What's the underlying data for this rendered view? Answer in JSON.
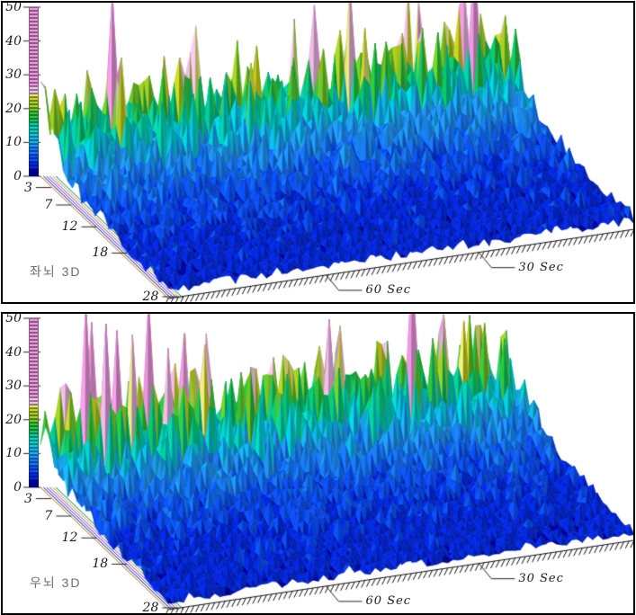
{
  "chart_data": [
    {
      "panel": "left-brain",
      "type": "surface",
      "title": "좌뇌 3D",
      "value_axis": {
        "range": [
          0,
          50
        ],
        "tick_labels": [
          "0",
          "10",
          "20",
          "30",
          "40",
          "50"
        ],
        "tick_values": [
          0,
          10,
          20,
          30,
          40,
          50
        ]
      },
      "depth_axis": {
        "range": [
          0,
          28
        ],
        "tick_labels": [
          "3",
          "7",
          "12",
          "18",
          "28"
        ],
        "tick_values": [
          3,
          7,
          12,
          18,
          28
        ]
      },
      "time_axis": {
        "cols": 90,
        "labels": [
          {
            "text": "60 Sec",
            "t": 30.5
          },
          {
            "text": "30 Sec",
            "t": 60
          }
        ]
      },
      "surface": {
        "seed": 20240,
        "rows": 28,
        "amp_floor": 3.2,
        "amp_back": 21,
        "amp_decay": 6.8,
        "peaks": [
          [
            1,
            2,
            28
          ],
          [
            13,
            1,
            52
          ],
          [
            13,
            3,
            36
          ],
          [
            22,
            2,
            30
          ],
          [
            30,
            1,
            24
          ],
          [
            40,
            2,
            32
          ],
          [
            46,
            3,
            26
          ],
          [
            52,
            1,
            40
          ],
          [
            58,
            2,
            46
          ],
          [
            60,
            3,
            34
          ],
          [
            67,
            1,
            24
          ],
          [
            72,
            2,
            30
          ],
          [
            81,
            1,
            38
          ],
          [
            82,
            2,
            50
          ],
          [
            88,
            2,
            30
          ],
          [
            89,
            1,
            26
          ]
        ]
      }
    },
    {
      "panel": "right-brain",
      "type": "surface",
      "title": "우뇌 3D",
      "value_axis": {
        "range": [
          0,
          50
        ],
        "tick_labels": [
          "0",
          "10",
          "20",
          "30",
          "40",
          "50"
        ],
        "tick_values": [
          0,
          10,
          20,
          30,
          40,
          50
        ]
      },
      "depth_axis": {
        "range": [
          0,
          28
        ],
        "tick_labels": [
          "3",
          "7",
          "12",
          "18",
          "28"
        ],
        "tick_values": [
          3,
          7,
          12,
          18,
          28
        ]
      },
      "time_axis": {
        "cols": 90,
        "labels": [
          {
            "text": "60 Sec",
            "t": 30.5
          },
          {
            "text": "30 Sec",
            "t": 60
          }
        ]
      },
      "surface": {
        "seed": 77613,
        "rows": 28,
        "amp_floor": 3.2,
        "amp_back": 21,
        "amp_decay": 6.8,
        "peaks": [
          [
            3,
            1,
            30
          ],
          [
            7,
            2,
            55
          ],
          [
            9,
            1,
            48
          ],
          [
            10,
            3,
            50
          ],
          [
            13,
            2,
            46
          ],
          [
            16,
            2,
            44
          ],
          [
            20,
            1,
            52
          ],
          [
            22,
            3,
            40
          ],
          [
            26,
            2,
            42
          ],
          [
            30,
            2,
            38
          ],
          [
            39,
            3,
            30
          ],
          [
            47,
            1,
            28
          ],
          [
            54,
            2,
            40
          ],
          [
            57,
            1,
            36
          ],
          [
            70,
            2,
            52
          ],
          [
            77,
            1,
            35
          ],
          [
            84,
            2,
            32
          ],
          [
            87,
            3,
            28
          ]
        ]
      }
    }
  ],
  "style": {
    "colormap": [
      [
        0,
        "#0000a8"
      ],
      [
        2,
        "#0028e6"
      ],
      [
        4,
        "#0a50ff"
      ],
      [
        6,
        "#1478ff"
      ],
      [
        8,
        "#1e96f5"
      ],
      [
        10,
        "#10b4f0"
      ],
      [
        11.5,
        "#00ccdc"
      ],
      [
        13,
        "#00d2be"
      ],
      [
        14.5,
        "#00cd96"
      ],
      [
        16,
        "#0ac464"
      ],
      [
        17.5,
        "#2cc43c"
      ],
      [
        19,
        "#6ec928"
      ],
      [
        20.5,
        "#a4cf1e"
      ],
      [
        22,
        "#cfd21e"
      ],
      [
        23.5,
        "#e2e27a"
      ],
      [
        25,
        "#f0bce8"
      ],
      [
        27,
        "#ea96dc"
      ]
    ],
    "axis_bundle_colors": [
      "#b86a00",
      "#000088",
      "#2233cc",
      "#bb22bb",
      "#99b400",
      "#007070"
    ],
    "label_color": "#1a1a1a",
    "title_color": "#6e6e6e",
    "panel_border_color": "#000000",
    "background": "#ffffff"
  }
}
